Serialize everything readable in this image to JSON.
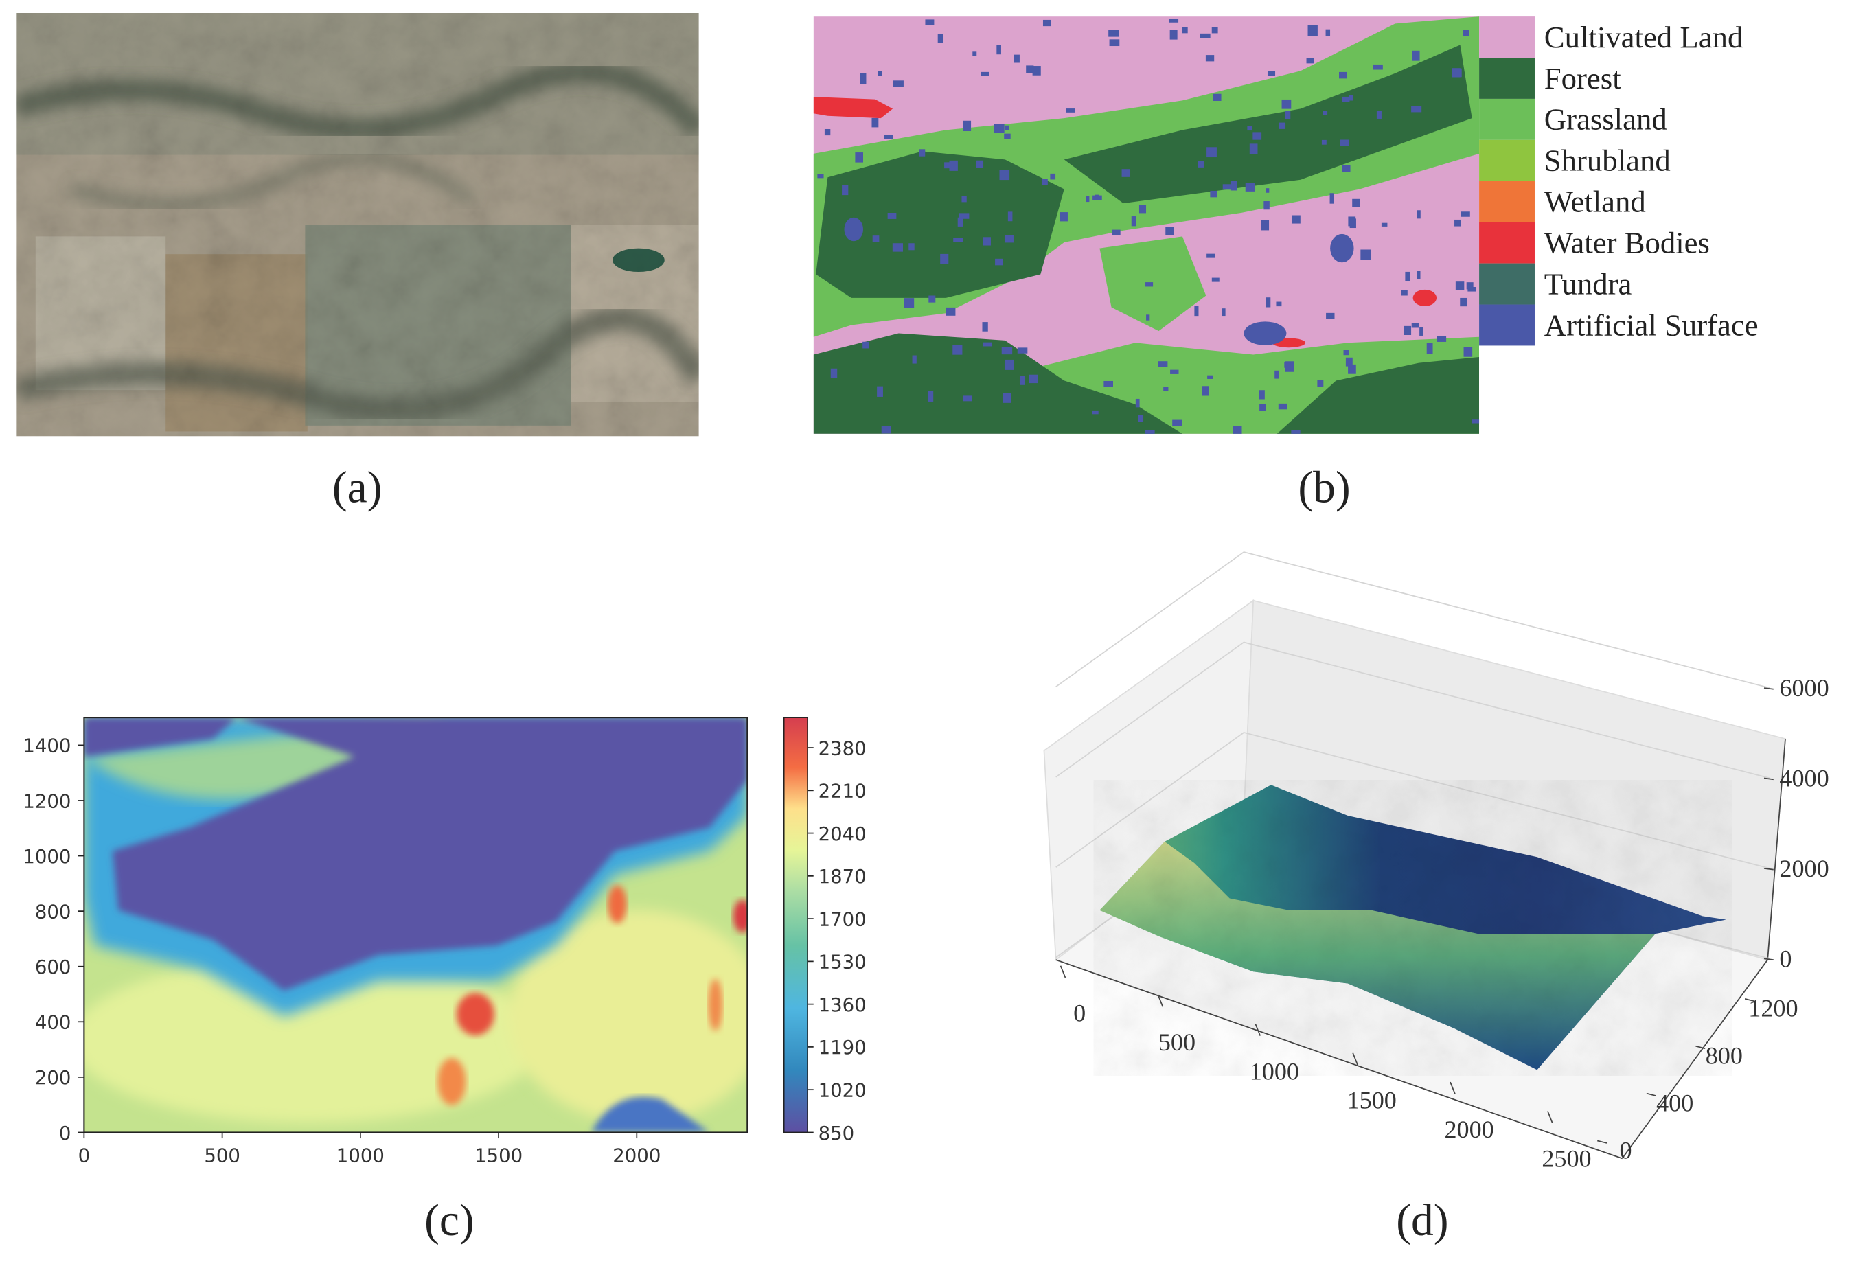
{
  "panels": [
    {
      "caption": "(a)"
    },
    {
      "caption": "(b)",
      "legend": [
        {
          "name": "Cultivated Land",
          "color": "#dca3cd"
        },
        {
          "name": "Forest",
          "color": "#2f6b3e"
        },
        {
          "name": "Grassland",
          "color": "#6cbf59"
        },
        {
          "name": "Shrubland",
          "color": "#8fc53f"
        },
        {
          "name": "Wetland",
          "color": "#ef7538"
        },
        {
          "name": "Water Bodies",
          "color": "#e8323b"
        },
        {
          "name": "Tundra",
          "color": "#3e6d66"
        },
        {
          "name": "Artificial Surface",
          "color": "#4a58a8"
        }
      ]
    },
    {
      "caption": "(c)",
      "xlim": [
        0,
        2400
      ],
      "ylim": [
        0,
        1500
      ],
      "xticks": [
        0,
        500,
        1000,
        1500,
        2000
      ],
      "yticks": [
        0,
        200,
        400,
        600,
        800,
        1000,
        1200,
        1400
      ],
      "colorbar": {
        "lim": [
          850,
          2500
        ],
        "ticks": [
          850,
          1020,
          1190,
          1360,
          1530,
          1700,
          1870,
          2040,
          2210,
          2380
        ]
      }
    },
    {
      "caption": "(d)",
      "xlim": [
        0,
        2500
      ],
      "ylim": [
        0,
        1500
      ],
      "zlim": [
        0,
        6000
      ],
      "xticks": [
        0,
        500,
        1000,
        1500,
        2000,
        2500
      ],
      "yticks": [
        0,
        400,
        800,
        1200
      ],
      "zticks": [
        0,
        2000,
        4000,
        6000
      ]
    }
  ]
}
